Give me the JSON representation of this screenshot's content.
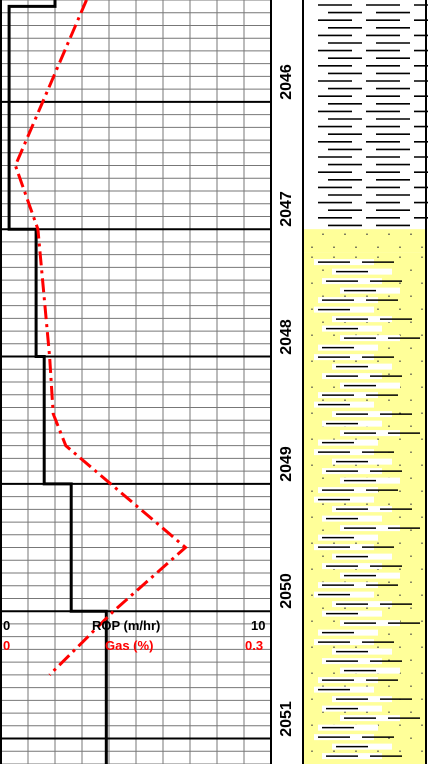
{
  "chart_data": {
    "type": "line",
    "depth_labels": [
      "2046",
      "2047",
      "2048",
      "2049",
      "2050",
      "2051"
    ],
    "depth_range": [
      2045.2,
      2051.2
    ],
    "rop": {
      "label": "ROP (m/hr)",
      "min_label": "0",
      "max_label": "10",
      "range": [
        0,
        10
      ],
      "color": "#000000",
      "points": [
        {
          "depth": 2045.2,
          "value": 2.0
        },
        {
          "depth": 2045.25,
          "value": 2.0
        },
        {
          "depth": 2045.25,
          "value": 0.3
        },
        {
          "depth": 2047.0,
          "value": 0.3
        },
        {
          "depth": 2047.0,
          "value": 1.3
        },
        {
          "depth": 2048.0,
          "value": 1.3
        },
        {
          "depth": 2048.0,
          "value": 1.6
        },
        {
          "depth": 2049.0,
          "value": 1.6
        },
        {
          "depth": 2049.0,
          "value": 2.6
        },
        {
          "depth": 2050.0,
          "value": 2.6
        },
        {
          "depth": 2050.0,
          "value": 3.9
        },
        {
          "depth": 2051.2,
          "value": 3.9
        }
      ]
    },
    "gas": {
      "label": "Gas (%)",
      "min_label": "0",
      "max_label": "0.3",
      "range": [
        0,
        0.3
      ],
      "color": "#ff0000",
      "points": [
        {
          "depth": 2045.2,
          "value": 0.095
        },
        {
          "depth": 2046.5,
          "value": 0.016
        },
        {
          "depth": 2047.0,
          "value": 0.041
        },
        {
          "depth": 2048.0,
          "value": 0.054
        },
        {
          "depth": 2048.45,
          "value": 0.058
        },
        {
          "depth": 2048.7,
          "value": 0.072
        },
        {
          "depth": 2049.5,
          "value": 0.205
        },
        {
          "depth": 2050.0,
          "value": 0.125
        },
        {
          "depth": 2050.5,
          "value": 0.054
        }
      ]
    },
    "lithology": [
      {
        "from": 2045.2,
        "to": 2047.0,
        "type": "shale",
        "fill": "#ffffff"
      },
      {
        "from": 2047.0,
        "to": 2047.18,
        "type": "sandstone",
        "fill": "#ffff99"
      },
      {
        "from": 2047.18,
        "to": 2051.2,
        "type": "interbedded-sandstone-shale",
        "fill": "#ffff99"
      }
    ],
    "grid": true
  }
}
